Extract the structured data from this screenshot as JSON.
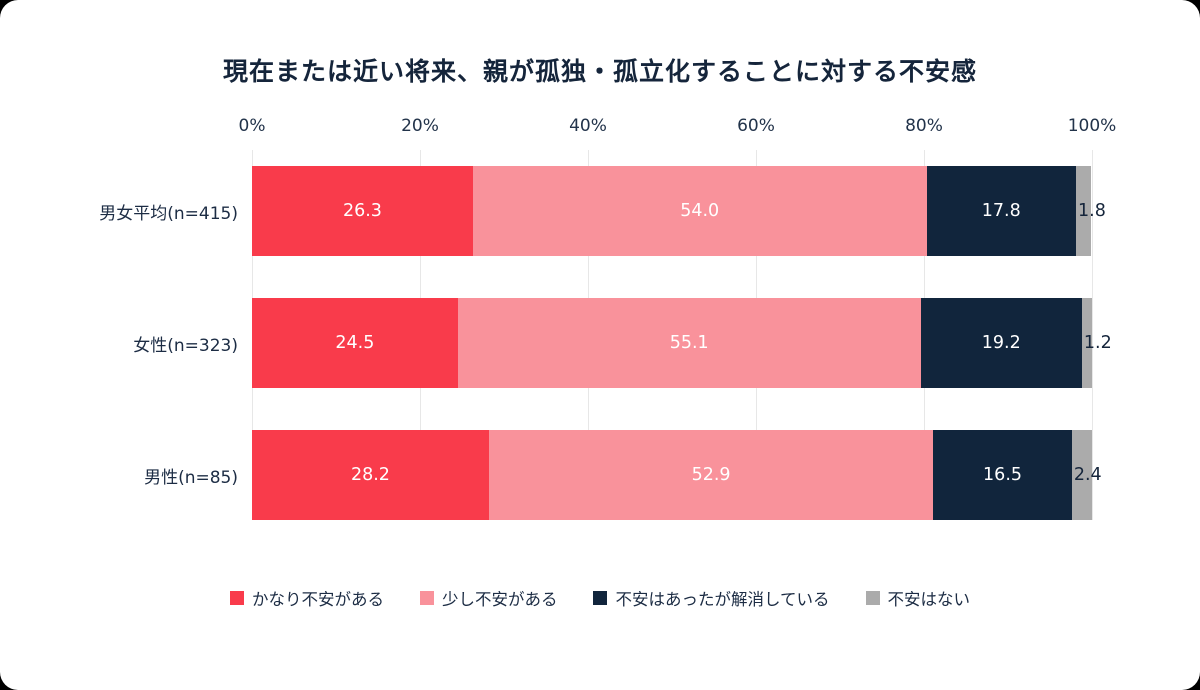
{
  "chart_data": {
    "type": "bar",
    "stacked": true,
    "orientation": "horizontal",
    "title": "現在または近い将来、親が孤独・孤立化することに対する不安感",
    "categories": [
      "男女平均(n=415)",
      "女性(n=323)",
      "男性(n=85)"
    ],
    "series": [
      {
        "name": "かなり不安がある",
        "color": "#f93b4b",
        "values": [
          26.3,
          24.5,
          28.2
        ]
      },
      {
        "name": "少し不安がある",
        "color": "#f9929b",
        "values": [
          54.0,
          55.1,
          52.9
        ]
      },
      {
        "name": "不安はあったが解消している",
        "color": "#11253c",
        "values": [
          17.8,
          19.2,
          16.5
        ]
      },
      {
        "name": "不安はない",
        "color": "#ababab",
        "values": [
          1.8,
          1.2,
          2.4
        ]
      }
    ],
    "x_ticks": [
      "0%",
      "20%",
      "40%",
      "60%",
      "80%",
      "100%"
    ],
    "xlim": [
      0,
      100
    ],
    "grid": true,
    "legend_position": "bottom",
    "value_decimals": 1
  },
  "colors": {
    "background": "#ffffff",
    "title_text": "#15253b",
    "axis_text": "#22334a",
    "gridline": "#e7e7e7"
  }
}
